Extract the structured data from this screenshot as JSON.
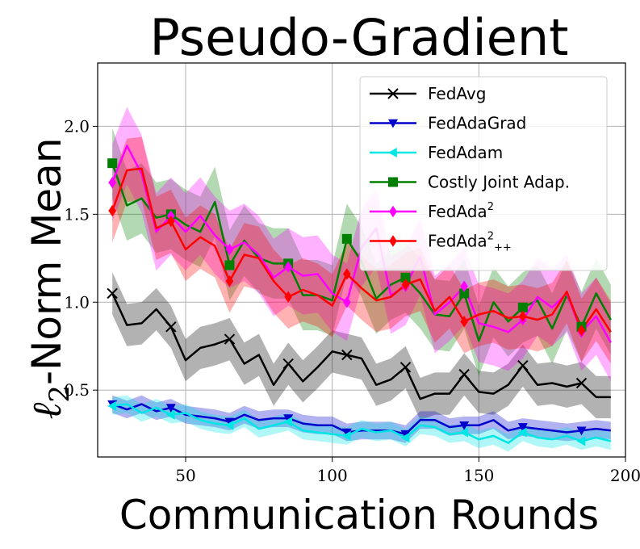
{
  "chart_data": {
    "type": "line",
    "title": "Pseudo-Gradient",
    "xlabel": "Communication Rounds",
    "ylabel_prefix": "ℓ",
    "ylabel_sub": "2",
    "ylabel_suffix": "-Norm Mean",
    "xlim": [
      20,
      200
    ],
    "ylim": [
      0.12,
      2.36
    ],
    "xticks": [
      50,
      100,
      150,
      200
    ],
    "yticks": [
      0.5,
      1.0,
      1.5,
      2.0
    ],
    "xtick_labels": [
      "50",
      "100",
      "150",
      "200"
    ],
    "ytick_labels": [
      "0.5",
      "1.0",
      "1.5",
      "2.0"
    ],
    "grid": true,
    "legend_position": "top-right",
    "x": [
      25,
      30,
      35,
      40,
      45,
      50,
      55,
      60,
      65,
      70,
      75,
      80,
      85,
      90,
      95,
      100,
      105,
      110,
      115,
      120,
      125,
      130,
      135,
      140,
      145,
      150,
      155,
      160,
      165,
      170,
      175,
      180,
      185,
      190,
      195
    ],
    "series": [
      {
        "name": "FedAvg",
        "color": "#000000",
        "marker": "x",
        "values": [
          1.05,
          0.87,
          0.88,
          0.96,
          0.86,
          0.67,
          0.74,
          0.76,
          0.79,
          0.65,
          0.7,
          0.53,
          0.65,
          0.55,
          0.63,
          0.72,
          0.7,
          0.68,
          0.53,
          0.56,
          0.63,
          0.45,
          0.48,
          0.48,
          0.59,
          0.49,
          0.48,
          0.53,
          0.64,
          0.53,
          0.54,
          0.52,
          0.54,
          0.46,
          0.46
        ],
        "band": 0.12
      },
      {
        "name": "FedAdaGrad",
        "color": "#0000cc",
        "marker": "triangle-down",
        "values": [
          0.42,
          0.39,
          0.42,
          0.38,
          0.4,
          0.36,
          0.35,
          0.34,
          0.32,
          0.36,
          0.33,
          0.34,
          0.34,
          0.31,
          0.3,
          0.3,
          0.26,
          0.27,
          0.27,
          0.27,
          0.25,
          0.33,
          0.33,
          0.29,
          0.3,
          0.3,
          0.33,
          0.27,
          0.29,
          0.28,
          0.27,
          0.26,
          0.27,
          0.28,
          0.27
        ],
        "band": 0.05
      },
      {
        "name": "FedAdam",
        "color": "#00e5e5",
        "marker": "triangle-left",
        "values": [
          0.41,
          0.42,
          0.37,
          0.4,
          0.36,
          0.37,
          0.33,
          0.31,
          0.3,
          0.34,
          0.28,
          0.3,
          0.32,
          0.27,
          0.26,
          0.25,
          0.24,
          0.28,
          0.26,
          0.27,
          0.23,
          0.3,
          0.29,
          0.25,
          0.26,
          0.22,
          0.24,
          0.2,
          0.26,
          0.23,
          0.22,
          0.24,
          0.21,
          0.23,
          0.21
        ],
        "band": 0.05
      },
      {
        "name": "Costly Joint Adap.",
        "color": "#008000",
        "marker": "square",
        "values": [
          1.79,
          1.55,
          1.59,
          1.48,
          1.5,
          1.44,
          1.4,
          1.57,
          1.21,
          1.35,
          1.25,
          1.22,
          1.22,
          1.04,
          1.04,
          1.01,
          1.36,
          1.23,
          1.02,
          1.1,
          1.14,
          1.05,
          0.93,
          0.92,
          1.05,
          0.78,
          1.0,
          0.89,
          0.97,
          1.01,
          0.85,
          1.04,
          0.86,
          1.05,
          0.9
        ],
        "band": 0.2
      },
      {
        "name": "FedAda",
        "name_sup": "2",
        "color": "#ff00ff",
        "marker": "diamond",
        "values": [
          1.68,
          1.89,
          1.73,
          1.4,
          1.49,
          1.4,
          1.49,
          1.38,
          1.3,
          1.34,
          1.27,
          1.14,
          1.2,
          1.15,
          1.16,
          1.05,
          1.0,
          1.31,
          1.42,
          1.04,
          1.09,
          1.26,
          0.93,
          1.0,
          1.09,
          0.88,
          0.86,
          0.83,
          0.9,
          1.03,
          0.97,
          1.05,
          0.83,
          0.92,
          0.77
        ],
        "band": 0.22
      },
      {
        "name": "FedAda",
        "name_sup": "2",
        "name_sub": "++",
        "color": "#ff0000",
        "marker": "diamond",
        "values": [
          1.52,
          1.75,
          1.76,
          1.42,
          1.46,
          1.3,
          1.37,
          1.32,
          1.12,
          1.27,
          1.25,
          1.12,
          1.03,
          1.07,
          1.04,
          0.98,
          1.16,
          1.08,
          1.01,
          1.03,
          1.1,
          1.13,
          0.95,
          1.03,
          0.89,
          0.93,
          0.95,
          0.91,
          0.92,
          0.9,
          0.93,
          1.06,
          0.84,
          0.96,
          0.83
        ],
        "band": 0.18
      }
    ]
  }
}
